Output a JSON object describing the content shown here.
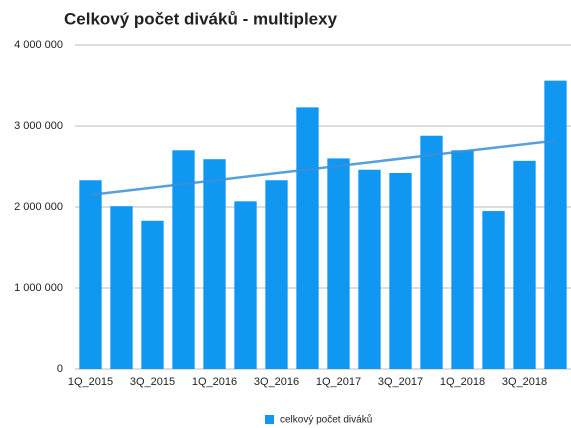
{
  "chart_data": {
    "type": "bar",
    "title": "Celkový počet diváků - multiplexy",
    "categories": [
      "1Q_2015",
      null,
      "3Q_2015",
      null,
      "1Q_2016",
      null,
      "3Q_2016",
      null,
      "1Q_2017",
      null,
      "3Q_2017",
      null,
      "1Q_2018",
      null,
      "3Q_2018",
      null
    ],
    "series": [
      {
        "name": "celkový počet diváků",
        "color": "#0f97f2",
        "values": [
          2330000,
          2010000,
          1830000,
          2700000,
          2590000,
          2070000,
          2330000,
          3230000,
          2600000,
          2460000,
          2420000,
          2880000,
          2700000,
          1950000,
          2570000,
          3560000
        ]
      }
    ],
    "trendline": {
      "start": 2150000,
      "end": 2820000,
      "color": "#3a8fd8"
    },
    "ylim": [
      0,
      4000000
    ],
    "yticks": [
      0,
      {
        "value": 1000000,
        "label": "1 000 000"
      },
      {
        "value": 2000000,
        "label": "2 000 000"
      },
      {
        "value": 3000000,
        "label": "3 000 000"
      },
      {
        "value": 4000000,
        "label": "4 000 000"
      }
    ],
    "grid": true,
    "legend": "bottom"
  }
}
